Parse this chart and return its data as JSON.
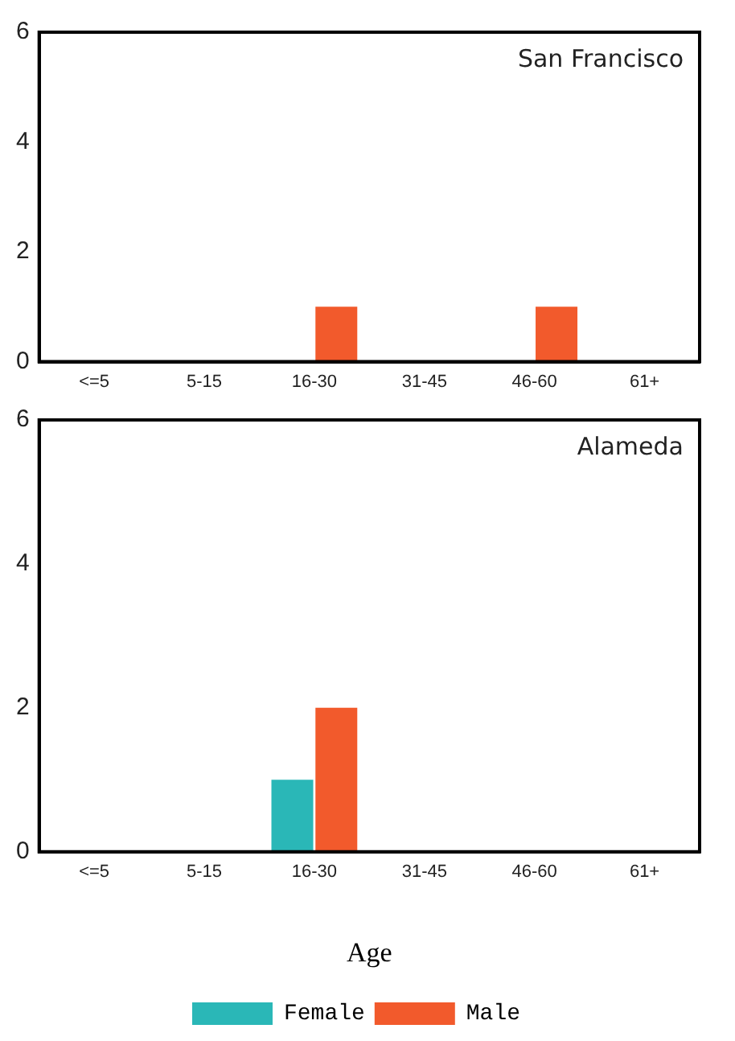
{
  "chart_data": [
    {
      "type": "bar",
      "categories": [
        "<=5",
        "5-15",
        "16-30",
        "31-45",
        "46-60",
        "61+"
      ],
      "series": [
        {
          "color": "#2ab7b7",
          "values": [
            0,
            0,
            0,
            0,
            0,
            0
          ]
        },
        {
          "color": "#f25a2c",
          "values": [
            0,
            0,
            1,
            0,
            1,
            0
          ]
        }
      ],
      "ylim": [
        0,
        6
      ],
      "yticks": [
        0,
        2,
        4,
        6
      ],
      "grid": false,
      "legend": false,
      "annotations": [
        "San Francisco"
      ]
    },
    {
      "type": "bar",
      "xlabel": "Age",
      "categories": [
        "<=5",
        "5-15",
        "16-30",
        "31-45",
        "46-60",
        "61+"
      ],
      "series": [
        {
          "name": "Female",
          "color": "#2ab7b7",
          "values": [
            0,
            0,
            1,
            0,
            0,
            0
          ]
        },
        {
          "name": "Male",
          "color": "#f25a2c",
          "values": [
            0,
            0,
            2,
            0,
            0,
            0
          ]
        }
      ],
      "ylim": [
        0,
        6
      ],
      "yticks": [
        0,
        2,
        4,
        6
      ],
      "grid": false,
      "legend": "bottom",
      "annotations": [
        "Alameda"
      ]
    }
  ]
}
